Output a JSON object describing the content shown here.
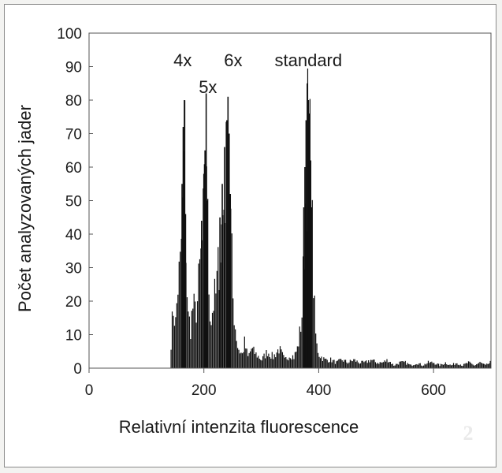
{
  "chart_data": {
    "type": "bar",
    "title": "",
    "xlabel": "Relativní intenzita fluorescence",
    "ylabel": "Počet analyzovaných jader",
    "xlim": [
      0,
      700
    ],
    "ylim": [
      0,
      100
    ],
    "x_ticks": [
      0,
      200,
      400,
      600
    ],
    "y_ticks": [
      0,
      10,
      20,
      30,
      40,
      50,
      60,
      70,
      80,
      90,
      100
    ],
    "grid": false,
    "legend": "none",
    "bar_color": "#111111",
    "bin_width": 2,
    "annotations": [
      {
        "text": "4x",
        "x": 163,
        "y": 92
      },
      {
        "text": "5x",
        "x": 207,
        "y": 84
      },
      {
        "text": "6x",
        "x": 251,
        "y": 92
      },
      {
        "text": "standard",
        "x": 382,
        "y": 92
      }
    ],
    "watermark": "2",
    "series": [
      {
        "x": [
          142,
          146,
          150,
          154,
          158,
          162,
          164,
          166,
          168,
          170,
          172,
          176,
          180,
          184,
          188,
          192,
          196,
          200,
          202,
          204,
          206,
          208,
          210,
          212,
          216,
          220,
          224,
          228,
          232,
          236,
          240,
          242,
          244,
          246,
          248,
          250,
          254,
          258,
          262,
          266,
          270,
          276,
          282,
          290,
          300,
          310,
          320,
          330,
          340,
          350,
          356,
          362,
          366,
          370,
          372,
          374,
          376,
          378,
          380,
          382,
          384,
          386,
          388,
          390,
          392,
          394,
          396,
          400,
          404,
          410,
          420,
          430,
          440,
          450,
          460,
          470,
          480,
          490,
          500,
          510,
          520,
          530,
          540,
          550,
          560,
          570,
          580,
          590,
          600,
          610,
          620,
          630,
          640,
          650,
          660,
          670,
          680,
          690,
          698
        ],
        "values": [
          10,
          22,
          16,
          30,
          36,
          55,
          72,
          80,
          46,
          28,
          18,
          15,
          22,
          20,
          24,
          35,
          44,
          58,
          65,
          82,
          50,
          30,
          22,
          18,
          24,
          26,
          35,
          45,
          55,
          66,
          74,
          81,
          70,
          52,
          38,
          25,
          15,
          8,
          6,
          5,
          9,
          4,
          7,
          5,
          3,
          6,
          4,
          7,
          3,
          5,
          4,
          7,
          12,
          20,
          32,
          48,
          60,
          74,
          85,
          80,
          76,
          62,
          48,
          32,
          20,
          12,
          8,
          5,
          4,
          3,
          3,
          2,
          3,
          2,
          3,
          2,
          2,
          3,
          2,
          2,
          3,
          1,
          2,
          2,
          1,
          2,
          1,
          2,
          2,
          1,
          2,
          1,
          2,
          1,
          2,
          1,
          2,
          1,
          2
        ]
      }
    ]
  }
}
